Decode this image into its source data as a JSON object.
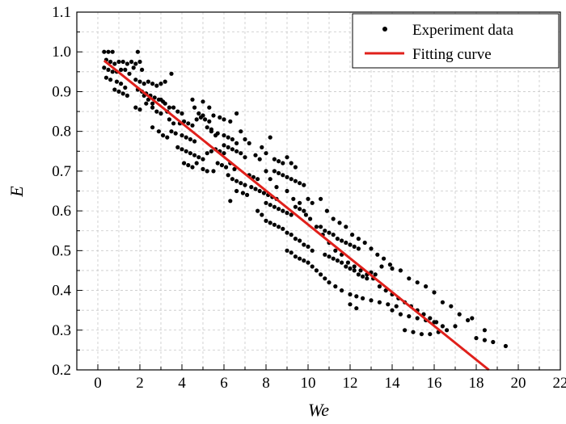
{
  "chart_data": {
    "type": "scatter",
    "xlabel": "We",
    "ylabel": "E",
    "xlim": [
      -1,
      22
    ],
    "ylim": [
      0.2,
      1.1
    ],
    "xticks": [
      "0",
      "2",
      "4",
      "6",
      "8",
      "10",
      "12",
      "14",
      "16",
      "18",
      "20",
      "22"
    ],
    "yticks": [
      "0.2",
      "0.3",
      "0.4",
      "0.5",
      "0.6",
      "0.7",
      "0.8",
      "0.9",
      "1.0",
      "1.1"
    ],
    "grid": true,
    "legend_position": "top-right",
    "colors": {
      "points": "#000000",
      "fit": "#e0201b",
      "grid": "#c8c8c8"
    },
    "series": [
      {
        "name": "Experiment data",
        "type": "scatter",
        "points": [
          [
            0.3,
            1.0
          ],
          [
            0.5,
            1.0
          ],
          [
            0.7,
            1.0
          ],
          [
            0.4,
            0.98
          ],
          [
            0.6,
            0.975
          ],
          [
            0.8,
            0.97
          ],
          [
            1.0,
            0.975
          ],
          [
            1.2,
            0.975
          ],
          [
            1.4,
            0.97
          ],
          [
            0.3,
            0.96
          ],
          [
            0.5,
            0.955
          ],
          [
            0.7,
            0.95
          ],
          [
            0.9,
            0.95
          ],
          [
            1.1,
            0.955
          ],
          [
            1.3,
            0.955
          ],
          [
            1.5,
            0.945
          ],
          [
            0.4,
            0.935
          ],
          [
            0.6,
            0.93
          ],
          [
            0.9,
            0.925
          ],
          [
            1.1,
            0.92
          ],
          [
            1.3,
            0.91
          ],
          [
            0.8,
            0.905
          ],
          [
            1.0,
            0.9
          ],
          [
            1.2,
            0.895
          ],
          [
            1.4,
            0.89
          ],
          [
            1.6,
            0.975
          ],
          [
            1.8,
            0.97
          ],
          [
            2.0,
            0.975
          ],
          [
            1.9,
            1.0
          ],
          [
            1.7,
            0.96
          ],
          [
            2.1,
            0.955
          ],
          [
            1.8,
            0.93
          ],
          [
            2.0,
            0.925
          ],
          [
            2.2,
            0.92
          ],
          [
            2.4,
            0.925
          ],
          [
            2.6,
            0.92
          ],
          [
            2.8,
            0.915
          ],
          [
            3.0,
            0.92
          ],
          [
            3.2,
            0.925
          ],
          [
            1.9,
            0.905
          ],
          [
            2.1,
            0.9
          ],
          [
            2.3,
            0.895
          ],
          [
            2.5,
            0.89
          ],
          [
            2.7,
            0.885
          ],
          [
            2.9,
            0.88
          ],
          [
            3.1,
            0.875
          ],
          [
            1.8,
            0.86
          ],
          [
            2.0,
            0.855
          ],
          [
            2.3,
            0.87
          ],
          [
            2.6,
            0.86
          ],
          [
            2.8,
            0.85
          ],
          [
            3.0,
            0.845
          ],
          [
            3.3,
            0.85
          ],
          [
            3.5,
            0.945
          ],
          [
            3.6,
            0.86
          ],
          [
            3.8,
            0.85
          ],
          [
            4.0,
            0.845
          ],
          [
            3.4,
            0.83
          ],
          [
            3.6,
            0.82
          ],
          [
            3.9,
            0.82
          ],
          [
            4.1,
            0.825
          ],
          [
            4.3,
            0.82
          ],
          [
            4.5,
            0.815
          ],
          [
            4.7,
            0.83
          ],
          [
            4.9,
            0.835
          ],
          [
            5.1,
            0.83
          ],
          [
            5.3,
            0.825
          ],
          [
            2.6,
            0.81
          ],
          [
            2.9,
            0.8
          ],
          [
            3.1,
            0.79
          ],
          [
            3.3,
            0.785
          ],
          [
            3.5,
            0.8
          ],
          [
            3.7,
            0.795
          ],
          [
            4.0,
            0.79
          ],
          [
            4.2,
            0.785
          ],
          [
            4.4,
            0.78
          ],
          [
            4.6,
            0.775
          ],
          [
            3.8,
            0.76
          ],
          [
            4.0,
            0.755
          ],
          [
            4.2,
            0.75
          ],
          [
            4.4,
            0.745
          ],
          [
            4.6,
            0.74
          ],
          [
            4.8,
            0.735
          ],
          [
            5.0,
            0.73
          ],
          [
            5.2,
            0.745
          ],
          [
            5.4,
            0.75
          ],
          [
            5.6,
            0.755
          ],
          [
            5.8,
            0.75
          ],
          [
            6.0,
            0.745
          ],
          [
            4.1,
            0.72
          ],
          [
            4.3,
            0.715
          ],
          [
            4.5,
            0.71
          ],
          [
            4.7,
            0.72
          ],
          [
            5.0,
            0.705
          ],
          [
            5.2,
            0.7
          ],
          [
            5.5,
            0.7
          ],
          [
            5.7,
            0.72
          ],
          [
            5.9,
            0.715
          ],
          [
            6.1,
            0.71
          ],
          [
            6.3,
            0.72
          ],
          [
            6.5,
            0.705
          ],
          [
            5.0,
            0.875
          ],
          [
            5.3,
            0.86
          ],
          [
            5.5,
            0.84
          ],
          [
            5.8,
            0.835
          ],
          [
            6.0,
            0.83
          ],
          [
            6.3,
            0.825
          ],
          [
            6.6,
            0.845
          ],
          [
            5.4,
            0.8
          ],
          [
            5.7,
            0.795
          ],
          [
            6.0,
            0.79
          ],
          [
            6.2,
            0.785
          ],
          [
            6.4,
            0.78
          ],
          [
            6.6,
            0.77
          ],
          [
            6.0,
            0.765
          ],
          [
            6.2,
            0.76
          ],
          [
            6.4,
            0.755
          ],
          [
            6.6,
            0.75
          ],
          [
            6.8,
            0.745
          ],
          [
            7.0,
            0.735
          ],
          [
            6.2,
            0.69
          ],
          [
            6.4,
            0.68
          ],
          [
            6.6,
            0.675
          ],
          [
            6.8,
            0.67
          ],
          [
            7.0,
            0.665
          ],
          [
            7.2,
            0.69
          ],
          [
            7.4,
            0.685
          ],
          [
            7.6,
            0.68
          ],
          [
            6.3,
            0.625
          ],
          [
            6.6,
            0.65
          ],
          [
            6.9,
            0.645
          ],
          [
            7.1,
            0.64
          ],
          [
            7.3,
            0.66
          ],
          [
            7.5,
            0.655
          ],
          [
            7.7,
            0.65
          ],
          [
            7.9,
            0.645
          ],
          [
            8.1,
            0.64
          ],
          [
            8.3,
            0.635
          ],
          [
            8.5,
            0.63
          ],
          [
            7.8,
            0.76
          ],
          [
            8.0,
            0.745
          ],
          [
            8.2,
            0.785
          ],
          [
            8.4,
            0.73
          ],
          [
            8.6,
            0.725
          ],
          [
            8.8,
            0.72
          ],
          [
            9.0,
            0.735
          ],
          [
            9.2,
            0.72
          ],
          [
            9.4,
            0.71
          ],
          [
            8.4,
            0.7
          ],
          [
            8.6,
            0.695
          ],
          [
            8.8,
            0.69
          ],
          [
            9.0,
            0.685
          ],
          [
            9.2,
            0.68
          ],
          [
            9.4,
            0.675
          ],
          [
            9.6,
            0.67
          ],
          [
            9.8,
            0.665
          ],
          [
            8.0,
            0.62
          ],
          [
            8.2,
            0.615
          ],
          [
            8.4,
            0.61
          ],
          [
            8.6,
            0.605
          ],
          [
            8.8,
            0.6
          ],
          [
            9.0,
            0.595
          ],
          [
            9.2,
            0.59
          ],
          [
            9.4,
            0.61
          ],
          [
            9.6,
            0.605
          ],
          [
            9.8,
            0.6
          ],
          [
            10.0,
            0.63
          ],
          [
            10.2,
            0.62
          ],
          [
            7.6,
            0.6
          ],
          [
            7.8,
            0.59
          ],
          [
            8.0,
            0.575
          ],
          [
            8.2,
            0.57
          ],
          [
            8.4,
            0.565
          ],
          [
            8.6,
            0.56
          ],
          [
            8.8,
            0.555
          ],
          [
            9.0,
            0.545
          ],
          [
            9.2,
            0.54
          ],
          [
            9.4,
            0.53
          ],
          [
            9.6,
            0.525
          ],
          [
            9.8,
            0.515
          ],
          [
            10.0,
            0.51
          ],
          [
            10.2,
            0.5
          ],
          [
            9.0,
            0.5
          ],
          [
            9.2,
            0.495
          ],
          [
            9.4,
            0.485
          ],
          [
            9.6,
            0.48
          ],
          [
            9.8,
            0.475
          ],
          [
            10.0,
            0.47
          ],
          [
            10.2,
            0.46
          ],
          [
            10.4,
            0.45
          ],
          [
            10.6,
            0.44
          ],
          [
            10.8,
            0.43
          ],
          [
            11.0,
            0.42
          ],
          [
            10.6,
            0.56
          ],
          [
            10.8,
            0.55
          ],
          [
            11.0,
            0.545
          ],
          [
            11.2,
            0.54
          ],
          [
            11.4,
            0.53
          ],
          [
            11.6,
            0.525
          ],
          [
            11.8,
            0.52
          ],
          [
            12.0,
            0.515
          ],
          [
            12.2,
            0.51
          ],
          [
            12.4,
            0.505
          ],
          [
            10.8,
            0.49
          ],
          [
            11.0,
            0.485
          ],
          [
            11.2,
            0.48
          ],
          [
            11.4,
            0.475
          ],
          [
            11.6,
            0.47
          ],
          [
            11.8,
            0.46
          ],
          [
            12.0,
            0.455
          ],
          [
            12.2,
            0.45
          ],
          [
            12.4,
            0.44
          ],
          [
            12.6,
            0.435
          ],
          [
            12.8,
            0.43
          ],
          [
            13.0,
            0.445
          ],
          [
            13.2,
            0.44
          ],
          [
            11.3,
            0.41
          ],
          [
            11.6,
            0.4
          ],
          [
            12.0,
            0.39
          ],
          [
            12.3,
            0.385
          ],
          [
            12.6,
            0.38
          ],
          [
            13.0,
            0.375
          ],
          [
            13.4,
            0.37
          ],
          [
            13.8,
            0.365
          ],
          [
            14.2,
            0.36
          ],
          [
            12.0,
            0.365
          ],
          [
            12.3,
            0.355
          ],
          [
            14.0,
            0.35
          ],
          [
            14.4,
            0.34
          ],
          [
            14.8,
            0.335
          ],
          [
            15.2,
            0.33
          ],
          [
            15.6,
            0.325
          ],
          [
            16.0,
            0.32
          ],
          [
            14.6,
            0.3
          ],
          [
            15.0,
            0.295
          ],
          [
            15.4,
            0.29
          ],
          [
            15.8,
            0.29
          ],
          [
            16.2,
            0.295
          ],
          [
            16.6,
            0.3
          ],
          [
            17.0,
            0.31
          ],
          [
            17.6,
            0.325
          ],
          [
            18.0,
            0.28
          ],
          [
            18.4,
            0.275
          ],
          [
            18.8,
            0.27
          ],
          [
            19.4,
            0.26
          ],
          [
            13.5,
            0.46
          ],
          [
            14.0,
            0.455
          ],
          [
            14.4,
            0.45
          ],
          [
            14.8,
            0.43
          ],
          [
            15.2,
            0.42
          ],
          [
            15.6,
            0.41
          ],
          [
            16.0,
            0.395
          ],
          [
            16.4,
            0.37
          ],
          [
            16.8,
            0.36
          ],
          [
            17.2,
            0.34
          ],
          [
            17.8,
            0.33
          ],
          [
            18.4,
            0.3
          ],
          [
            10.6,
            0.63
          ],
          [
            10.9,
            0.6
          ],
          [
            11.2,
            0.58
          ],
          [
            11.5,
            0.57
          ],
          [
            11.8,
            0.56
          ],
          [
            12.1,
            0.54
          ],
          [
            12.4,
            0.53
          ],
          [
            12.7,
            0.52
          ],
          [
            13.0,
            0.505
          ],
          [
            13.3,
            0.49
          ],
          [
            13.6,
            0.48
          ],
          [
            13.9,
            0.465
          ],
          [
            3.0,
            0.88
          ],
          [
            3.2,
            0.87
          ],
          [
            3.4,
            0.86
          ],
          [
            2.2,
            0.89
          ],
          [
            2.4,
            0.88
          ],
          [
            2.6,
            0.87
          ],
          [
            4.6,
            0.86
          ],
          [
            4.8,
            0.845
          ],
          [
            5.0,
            0.84
          ],
          [
            5.2,
            0.81
          ],
          [
            5.4,
            0.805
          ],
          [
            5.6,
            0.79
          ],
          [
            4.5,
            0.88
          ],
          [
            6.8,
            0.8
          ],
          [
            7.0,
            0.78
          ],
          [
            7.2,
            0.77
          ],
          [
            7.5,
            0.74
          ],
          [
            7.7,
            0.73
          ],
          [
            8.0,
            0.7
          ],
          [
            8.2,
            0.68
          ],
          [
            8.5,
            0.66
          ],
          [
            9.0,
            0.65
          ],
          [
            9.3,
            0.63
          ],
          [
            9.6,
            0.62
          ],
          [
            9.9,
            0.59
          ],
          [
            10.1,
            0.58
          ],
          [
            10.4,
            0.56
          ],
          [
            10.7,
            0.54
          ],
          [
            11.0,
            0.52
          ],
          [
            11.3,
            0.5
          ],
          [
            11.6,
            0.49
          ],
          [
            11.9,
            0.47
          ],
          [
            12.2,
            0.46
          ],
          [
            12.5,
            0.45
          ],
          [
            12.8,
            0.44
          ],
          [
            13.1,
            0.43
          ],
          [
            13.4,
            0.41
          ],
          [
            13.7,
            0.4
          ],
          [
            14.0,
            0.39
          ],
          [
            14.3,
            0.38
          ],
          [
            14.6,
            0.37
          ],
          [
            14.9,
            0.36
          ],
          [
            15.2,
            0.35
          ],
          [
            15.5,
            0.34
          ],
          [
            15.8,
            0.33
          ],
          [
            16.1,
            0.32
          ],
          [
            16.4,
            0.31
          ]
        ]
      },
      {
        "name": "Fitting curve",
        "type": "line",
        "points": [
          [
            0.3,
            0.978
          ],
          [
            18.6,
            0.2
          ]
        ]
      }
    ]
  }
}
